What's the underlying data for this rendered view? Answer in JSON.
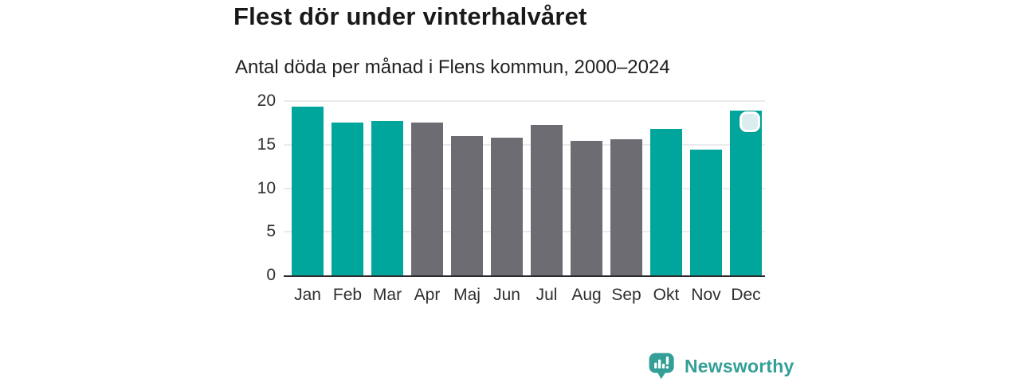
{
  "chart_data": {
    "type": "bar",
    "title": "Flest dör under vinterhalvåret",
    "subtitle": "Antal döda per månad i Flens kommun, 2000–2024",
    "categories": [
      "Jan",
      "Feb",
      "Mar",
      "Apr",
      "Maj",
      "Jun",
      "Jul",
      "Aug",
      "Sep",
      "Okt",
      "Nov",
      "Dec"
    ],
    "values": [
      19.4,
      17.5,
      17.7,
      17.5,
      16.0,
      15.8,
      17.3,
      15.4,
      15.6,
      16.8,
      14.4,
      18.9
    ],
    "highlight_flags": [
      true,
      true,
      true,
      false,
      false,
      false,
      false,
      false,
      false,
      true,
      true,
      true
    ],
    "xlabel": "",
    "ylabel": "",
    "ylim": [
      0,
      20
    ],
    "yticks": [
      0,
      5,
      10,
      15,
      20
    ],
    "grid": "horizontal",
    "legend": "none",
    "colors": {
      "highlight": "#00a69b",
      "default": "#6e6c73",
      "gridline": "#ebebee",
      "axis_line": "#2c2c2c",
      "axis_text": "#2f2f2f",
      "title_text": "#191919"
    },
    "selection_marker": {
      "category": "Dec"
    }
  },
  "footer": {
    "brand": "Newsworthy",
    "brand_color": "#339f97"
  }
}
